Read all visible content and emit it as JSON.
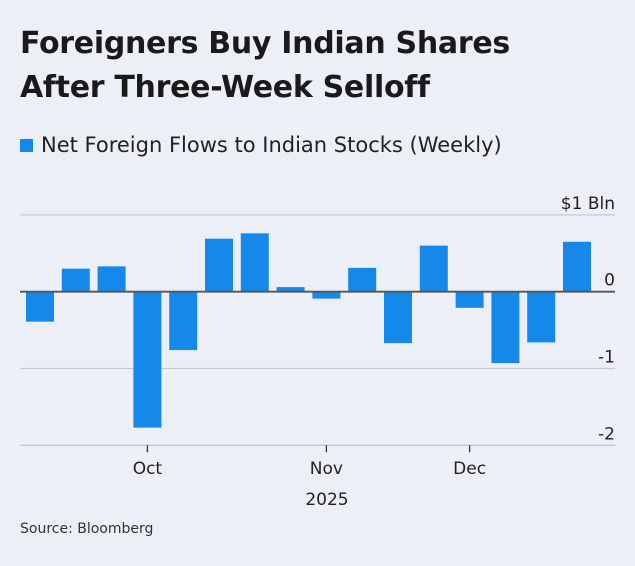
{
  "title_lines": [
    "Foreigners Buy Indian Shares",
    "After Three-Week Selloff"
  ],
  "source": "Source: Bloomberg",
  "chart_data": {
    "type": "bar",
    "title": "Foreigners Buy Indian Shares After Three-Week Selloff",
    "legend": "top-left",
    "series": [
      {
        "name": "Net Foreign Flows to Indian Stocks (Weekly)",
        "color": "#1589ea",
        "values": [
          -0.39,
          0.3,
          0.33,
          -1.77,
          -0.76,
          0.69,
          0.76,
          0.06,
          -0.09,
          0.31,
          -0.67,
          0.6,
          -0.21,
          -0.93,
          -0.66,
          0.65
        ]
      }
    ],
    "x_ticks": [
      {
        "index": 3,
        "label": "Oct"
      },
      {
        "index": 8,
        "label": "Nov"
      },
      {
        "index": 12,
        "label": "Dec"
      }
    ],
    "xlabel": "2025",
    "y_ticks": [
      {
        "value": 1,
        "label": "$1 Bln"
      },
      {
        "value": 0,
        "label": "0"
      },
      {
        "value": -1,
        "label": "-1"
      },
      {
        "value": -2,
        "label": "-2"
      }
    ],
    "ylim": [
      -2,
      1
    ],
    "grid": true
  }
}
